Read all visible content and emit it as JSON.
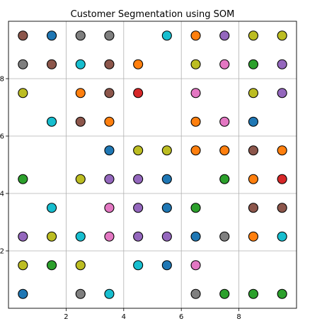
{
  "chart_data": {
    "type": "scatter",
    "title": "Customer Segmentation using SOM",
    "xlabel": "",
    "ylabel": "",
    "xlim": [
      0,
      10
    ],
    "ylim": [
      0,
      10
    ],
    "grid": true,
    "x_ticks": [
      2,
      4,
      6,
      8
    ],
    "y_ticks": [
      2,
      4,
      6,
      8
    ],
    "palette": {
      "blue": "#1f77b4",
      "orange": "#ff7f0e",
      "green": "#2ca02c",
      "red": "#d62728",
      "purple": "#9467bd",
      "brown": "#8c564b",
      "pink": "#e377c2",
      "gray": "#7f7f7f",
      "olive": "#bcbd22",
      "cyan": "#17becf"
    },
    "points": [
      {
        "x": 0.5,
        "y": 9.5,
        "c": "brown"
      },
      {
        "x": 1.5,
        "y": 9.5,
        "c": "blue"
      },
      {
        "x": 2.5,
        "y": 9.5,
        "c": "gray"
      },
      {
        "x": 3.5,
        "y": 9.5,
        "c": "gray"
      },
      {
        "x": 5.5,
        "y": 9.5,
        "c": "cyan"
      },
      {
        "x": 6.5,
        "y": 9.5,
        "c": "orange"
      },
      {
        "x": 7.5,
        "y": 9.5,
        "c": "purple"
      },
      {
        "x": 8.5,
        "y": 9.5,
        "c": "olive"
      },
      {
        "x": 9.5,
        "y": 9.5,
        "c": "olive"
      },
      {
        "x": 0.5,
        "y": 8.5,
        "c": "gray"
      },
      {
        "x": 1.5,
        "y": 8.5,
        "c": "brown"
      },
      {
        "x": 2.5,
        "y": 8.5,
        "c": "cyan"
      },
      {
        "x": 3.5,
        "y": 8.5,
        "c": "brown"
      },
      {
        "x": 4.5,
        "y": 8.5,
        "c": "orange"
      },
      {
        "x": 6.5,
        "y": 8.5,
        "c": "olive"
      },
      {
        "x": 7.5,
        "y": 8.5,
        "c": "pink"
      },
      {
        "x": 8.5,
        "y": 8.5,
        "c": "green"
      },
      {
        "x": 9.5,
        "y": 8.5,
        "c": "purple"
      },
      {
        "x": 0.5,
        "y": 7.5,
        "c": "olive"
      },
      {
        "x": 2.5,
        "y": 7.5,
        "c": "orange"
      },
      {
        "x": 3.5,
        "y": 7.5,
        "c": "brown"
      },
      {
        "x": 4.5,
        "y": 7.5,
        "c": "red"
      },
      {
        "x": 6.5,
        "y": 7.5,
        "c": "pink"
      },
      {
        "x": 8.5,
        "y": 7.5,
        "c": "olive"
      },
      {
        "x": 9.5,
        "y": 7.5,
        "c": "purple"
      },
      {
        "x": 1.5,
        "y": 6.5,
        "c": "cyan"
      },
      {
        "x": 2.5,
        "y": 6.5,
        "c": "brown"
      },
      {
        "x": 3.5,
        "y": 6.5,
        "c": "orange"
      },
      {
        "x": 6.5,
        "y": 6.5,
        "c": "orange"
      },
      {
        "x": 7.5,
        "y": 6.5,
        "c": "pink"
      },
      {
        "x": 8.5,
        "y": 6.5,
        "c": "blue"
      },
      {
        "x": 3.5,
        "y": 5.5,
        "c": "blue"
      },
      {
        "x": 4.5,
        "y": 5.5,
        "c": "olive"
      },
      {
        "x": 5.5,
        "y": 5.5,
        "c": "olive"
      },
      {
        "x": 6.5,
        "y": 5.5,
        "c": "orange"
      },
      {
        "x": 7.5,
        "y": 5.5,
        "c": "orange"
      },
      {
        "x": 8.5,
        "y": 5.5,
        "c": "brown"
      },
      {
        "x": 9.5,
        "y": 5.5,
        "c": "orange"
      },
      {
        "x": 0.5,
        "y": 4.5,
        "c": "green"
      },
      {
        "x": 2.5,
        "y": 4.5,
        "c": "olive"
      },
      {
        "x": 3.5,
        "y": 4.5,
        "c": "purple"
      },
      {
        "x": 4.5,
        "y": 4.5,
        "c": "purple"
      },
      {
        "x": 5.5,
        "y": 4.5,
        "c": "blue"
      },
      {
        "x": 7.5,
        "y": 4.5,
        "c": "green"
      },
      {
        "x": 8.5,
        "y": 4.5,
        "c": "orange"
      },
      {
        "x": 9.5,
        "y": 4.5,
        "c": "red"
      },
      {
        "x": 1.5,
        "y": 3.5,
        "c": "cyan"
      },
      {
        "x": 3.5,
        "y": 3.5,
        "c": "pink"
      },
      {
        "x": 4.5,
        "y": 3.5,
        "c": "purple"
      },
      {
        "x": 5.5,
        "y": 3.5,
        "c": "blue"
      },
      {
        "x": 6.5,
        "y": 3.5,
        "c": "green"
      },
      {
        "x": 8.5,
        "y": 3.5,
        "c": "brown"
      },
      {
        "x": 9.5,
        "y": 3.5,
        "c": "brown"
      },
      {
        "x": 0.5,
        "y": 2.5,
        "c": "purple"
      },
      {
        "x": 1.5,
        "y": 2.5,
        "c": "olive"
      },
      {
        "x": 2.5,
        "y": 2.5,
        "c": "cyan"
      },
      {
        "x": 3.5,
        "y": 2.5,
        "c": "pink"
      },
      {
        "x": 4.5,
        "y": 2.5,
        "c": "purple"
      },
      {
        "x": 5.5,
        "y": 2.5,
        "c": "purple"
      },
      {
        "x": 6.5,
        "y": 2.5,
        "c": "blue"
      },
      {
        "x": 7.5,
        "y": 2.5,
        "c": "gray"
      },
      {
        "x": 8.5,
        "y": 2.5,
        "c": "orange"
      },
      {
        "x": 9.5,
        "y": 2.5,
        "c": "cyan"
      },
      {
        "x": 0.5,
        "y": 1.5,
        "c": "olive"
      },
      {
        "x": 1.5,
        "y": 1.5,
        "c": "green"
      },
      {
        "x": 2.5,
        "y": 1.5,
        "c": "olive"
      },
      {
        "x": 4.5,
        "y": 1.5,
        "c": "cyan"
      },
      {
        "x": 5.5,
        "y": 1.5,
        "c": "blue"
      },
      {
        "x": 6.5,
        "y": 1.5,
        "c": "pink"
      },
      {
        "x": 0.5,
        "y": 0.5,
        "c": "blue"
      },
      {
        "x": 2.5,
        "y": 0.5,
        "c": "gray"
      },
      {
        "x": 3.5,
        "y": 0.5,
        "c": "cyan"
      },
      {
        "x": 6.5,
        "y": 0.5,
        "c": "gray"
      },
      {
        "x": 7.5,
        "y": 0.5,
        "c": "green"
      },
      {
        "x": 8.5,
        "y": 0.5,
        "c": "green"
      },
      {
        "x": 9.5,
        "y": 0.5,
        "c": "green"
      }
    ]
  }
}
